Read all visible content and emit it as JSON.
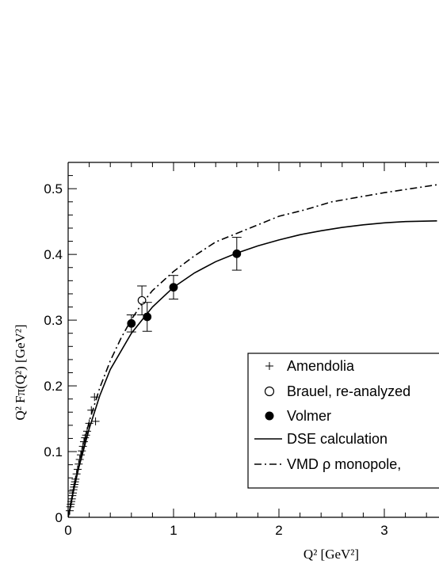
{
  "chart_data": {
    "type": "line",
    "xlabel": "Q² [GeV²]",
    "ylabel": "Q² Fπ(Q²) [GeV²]",
    "xlim": [
      0,
      3.5
    ],
    "ylim": [
      0,
      0.54
    ],
    "xticks": [
      0,
      1,
      2,
      3
    ],
    "yticks": [
      0,
      0.1,
      0.2,
      0.3,
      0.4,
      0.5
    ],
    "xtick_labels": [
      "0",
      "1",
      "2",
      "3"
    ],
    "ytick_labels": [
      "0",
      "0.1",
      "0.2",
      "0.3",
      "0.4",
      "0.5"
    ],
    "legend_position": "bottom-right",
    "series": [
      {
        "name": "Amendolia",
        "kind": "cross",
        "points": [
          [
            0.015,
            0.01
          ],
          [
            0.02,
            0.016
          ],
          [
            0.025,
            0.02
          ],
          [
            0.03,
            0.024
          ],
          [
            0.035,
            0.028
          ],
          [
            0.04,
            0.033
          ],
          [
            0.045,
            0.037
          ],
          [
            0.05,
            0.042
          ],
          [
            0.055,
            0.046
          ],
          [
            0.06,
            0.05
          ],
          [
            0.065,
            0.054
          ],
          [
            0.07,
            0.058
          ],
          [
            0.08,
            0.066
          ],
          [
            0.09,
            0.073
          ],
          [
            0.1,
            0.081
          ],
          [
            0.11,
            0.088
          ],
          [
            0.12,
            0.095
          ],
          [
            0.13,
            0.101
          ],
          [
            0.14,
            0.108
          ],
          [
            0.15,
            0.115
          ],
          [
            0.16,
            0.121
          ],
          [
            0.17,
            0.125
          ],
          [
            0.18,
            0.131
          ],
          [
            0.2,
            0.143
          ],
          [
            0.22,
            0.163
          ],
          [
            0.25,
            0.183
          ],
          [
            0.26,
            0.146
          ]
        ]
      },
      {
        "name": "Brauel, re-analyzed",
        "kind": "open-circle",
        "points": [
          [
            0.7,
            0.33,
            0.022
          ]
        ]
      },
      {
        "name": "Volmer",
        "kind": "filled-circle",
        "points": [
          [
            0.6,
            0.295,
            0.013
          ],
          [
            0.75,
            0.305,
            0.022
          ],
          [
            1.0,
            0.35,
            0.018
          ],
          [
            1.6,
            0.401,
            0.025
          ]
        ]
      },
      {
        "name": "DSE calculation",
        "kind": "solid-line",
        "points": [
          [
            0,
            0
          ],
          [
            0.05,
            0.04
          ],
          [
            0.1,
            0.075
          ],
          [
            0.2,
            0.135
          ],
          [
            0.3,
            0.185
          ],
          [
            0.4,
            0.225
          ],
          [
            0.6,
            0.28
          ],
          [
            0.8,
            0.32
          ],
          [
            1.0,
            0.35
          ],
          [
            1.2,
            0.372
          ],
          [
            1.4,
            0.389
          ],
          [
            1.6,
            0.402
          ],
          [
            1.8,
            0.413
          ],
          [
            2.0,
            0.422
          ],
          [
            2.2,
            0.43
          ],
          [
            2.4,
            0.436
          ],
          [
            2.6,
            0.441
          ],
          [
            2.8,
            0.445
          ],
          [
            3.0,
            0.448
          ],
          [
            3.2,
            0.45
          ],
          [
            3.5,
            0.451
          ]
        ]
      },
      {
        "name": "VMD ρ monopole,",
        "kind": "dashdot-line",
        "points": [
          [
            0,
            0
          ],
          [
            0.05,
            0.041
          ],
          [
            0.1,
            0.08
          ],
          [
            0.2,
            0.146
          ],
          [
            0.3,
            0.197
          ],
          [
            0.4,
            0.238
          ],
          [
            0.5,
            0.272
          ],
          [
            0.6,
            0.301
          ],
          [
            0.7,
            0.325
          ],
          [
            0.8,
            0.345
          ],
          [
            1.0,
            0.374
          ],
          [
            1.2,
            0.398
          ],
          [
            1.4,
            0.419
          ],
          [
            1.6,
            0.432
          ],
          [
            1.8,
            0.445
          ],
          [
            2.0,
            0.458
          ],
          [
            2.25,
            0.468
          ],
          [
            2.5,
            0.48
          ],
          [
            2.75,
            0.487
          ],
          [
            3.0,
            0.494
          ],
          [
            3.25,
            0.5
          ],
          [
            3.5,
            0.506
          ]
        ]
      }
    ]
  }
}
